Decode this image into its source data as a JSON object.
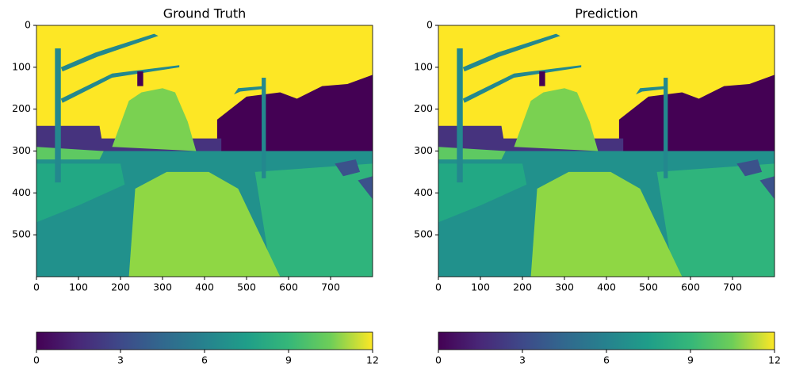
{
  "chart_data": [
    {
      "type": "image",
      "title": "Ground Truth",
      "xlim": [
        0,
        800
      ],
      "ylim": [
        600,
        0
      ],
      "xticks": [
        0,
        100,
        200,
        300,
        400,
        500,
        600,
        700
      ],
      "yticks": [
        0,
        100,
        200,
        300,
        400,
        500
      ],
      "colorbar": {
        "colormap": "viridis",
        "lim": [
          0,
          12
        ],
        "ticks": [
          0,
          3,
          6,
          9,
          12
        ]
      }
    },
    {
      "type": "image",
      "title": "Prediction",
      "xlim": [
        0,
        800
      ],
      "ylim": [
        600,
        0
      ],
      "xticks": [
        0,
        100,
        200,
        300,
        400,
        500,
        600,
        700
      ],
      "yticks": [
        0,
        100,
        200,
        300,
        400,
        500
      ],
      "colorbar": {
        "colormap": "viridis",
        "lim": [
          0,
          12
        ],
        "ticks": [
          0,
          3,
          6,
          9,
          12
        ]
      }
    }
  ]
}
